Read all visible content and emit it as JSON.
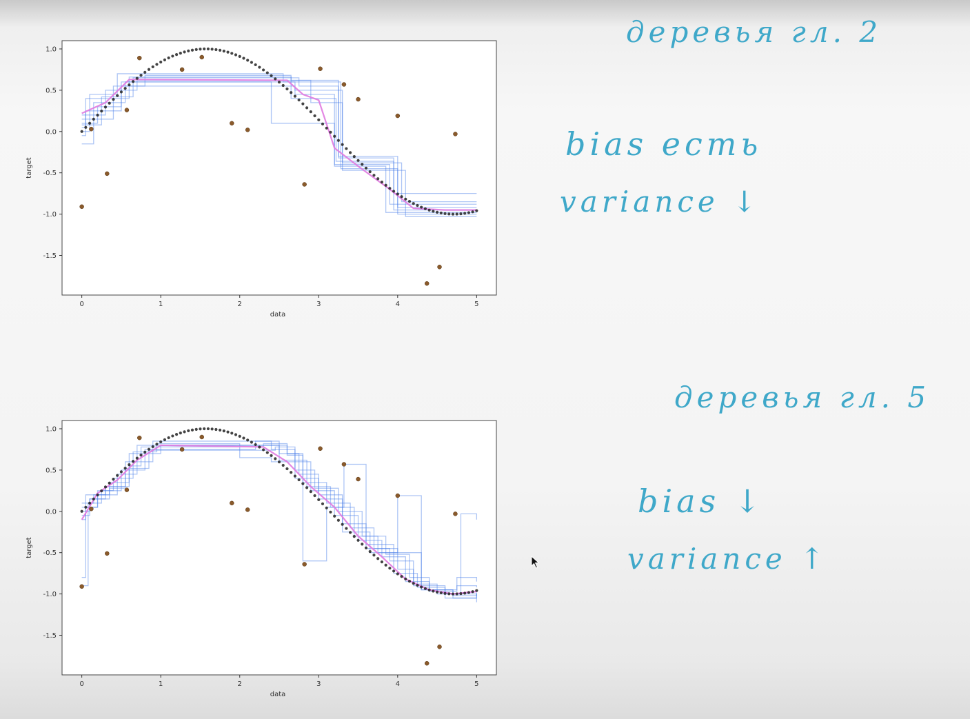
{
  "notes": {
    "plot1_heading": "деревья гл. 2",
    "plot1_bias": "bias есть",
    "plot1_variance": "variance ↓",
    "plot2_heading": "деревья гл. 5",
    "plot2_bias": "bias ↓",
    "plot2_variance": "variance ↑"
  },
  "colors": {
    "true_curve": "#222222",
    "train_points": "#8a5a2b",
    "tree_predictions": "#4a7ee8",
    "mean_prediction": "#e07ae0",
    "notes": "#3fa8c9"
  },
  "chart_data": [
    {
      "type": "line",
      "title": "",
      "xlabel": "data",
      "ylabel": "target",
      "xlim": [
        -0.25,
        5.25
      ],
      "ylim": [
        -1.98,
        1.1
      ],
      "xticks": [
        0,
        1,
        2,
        3,
        4,
        5
      ],
      "yticks": [
        1.0,
        0.5,
        0.0,
        -0.5,
        -1.0,
        -1.5
      ],
      "xtick_labels": [
        "0",
        "1",
        "2",
        "3",
        "4",
        "5"
      ],
      "ytick_labels": [
        "1.0",
        "0.5",
        "0.0",
        "-0.5",
        "-1.0",
        "-1.5"
      ],
      "true_function": "sin",
      "noisy_points": {
        "x": [
          0.0,
          0.12,
          0.32,
          0.57,
          0.73,
          1.27,
          1.52,
          1.9,
          2.1,
          2.82,
          3.02,
          3.32,
          3.5,
          4.0,
          4.37,
          4.53,
          4.73
        ],
        "y": [
          -0.91,
          0.03,
          -0.51,
          0.26,
          0.89,
          0.75,
          0.9,
          0.1,
          0.02,
          -0.64,
          0.76,
          0.57,
          0.39,
          0.19,
          -1.84,
          -1.64,
          -0.03
        ]
      },
      "tree_depth": 2,
      "tree_predictions": [
        {
          "x": [
            0,
            0.05,
            0.6,
            2.65,
            3.25,
            3.95,
            5
          ],
          "y": [
            0.05,
            0.4,
            0.66,
            0.62,
            -0.32,
            -0.95,
            -0.95
          ]
        },
        {
          "x": [
            0,
            0.2,
            0.5,
            2.7,
            3.2,
            3.9,
            5
          ],
          "y": [
            0.1,
            0.3,
            0.6,
            0.45,
            -0.4,
            -0.88,
            -0.88
          ]
        },
        {
          "x": [
            0,
            0.1,
            0.45,
            2.55,
            3.28,
            4.0,
            5
          ],
          "y": [
            0.0,
            0.45,
            0.7,
            0.6,
            -0.45,
            -1.0,
            -1.0
          ]
        },
        {
          "x": [
            0,
            0.3,
            0.7,
            2.9,
            3.3,
            4.05,
            5
          ],
          "y": [
            0.2,
            0.5,
            0.62,
            0.35,
            -0.38,
            -0.85,
            -0.85
          ]
        },
        {
          "x": [
            0,
            0.15,
            0.55,
            2.4,
            3.2,
            3.85,
            5
          ],
          "y": [
            -0.15,
            0.35,
            0.6,
            0.1,
            -0.42,
            -0.98,
            -0.98
          ]
        },
        {
          "x": [
            0,
            0.25,
            0.65,
            2.75,
            3.25,
            4.0,
            5
          ],
          "y": [
            0.08,
            0.42,
            0.65,
            0.55,
            -0.3,
            -0.92,
            -0.92
          ]
        },
        {
          "x": [
            0,
            0.4,
            0.8,
            2.65,
            3.22,
            3.95,
            5
          ],
          "y": [
            0.15,
            0.55,
            0.68,
            0.4,
            -0.36,
            -0.75,
            -0.75
          ]
        },
        {
          "x": [
            0,
            0.05,
            0.5,
            2.7,
            3.3,
            4.1,
            5
          ],
          "y": [
            -0.05,
            0.25,
            0.55,
            0.5,
            -0.47,
            -1.03,
            -1.03
          ]
        }
      ],
      "mean_prediction": {
        "x": [
          0,
          0.3,
          0.6,
          2.6,
          2.8,
          3.0,
          3.2,
          3.5,
          3.9,
          4.2,
          4.6,
          5
        ],
        "y": [
          0.22,
          0.35,
          0.63,
          0.62,
          0.45,
          0.38,
          -0.2,
          -0.42,
          -0.7,
          -0.93,
          -0.95,
          -0.95
        ]
      }
    },
    {
      "type": "line",
      "title": "",
      "xlabel": "data",
      "ylabel": "target",
      "xlim": [
        -0.25,
        5.25
      ],
      "ylim": [
        -1.98,
        1.1
      ],
      "xticks": [
        0,
        1,
        2,
        3,
        4,
        5
      ],
      "yticks": [
        1.0,
        0.5,
        0.0,
        -0.5,
        -1.0,
        -1.5
      ],
      "xtick_labels": [
        "0",
        "1",
        "2",
        "3",
        "4",
        "5"
      ],
      "ytick_labels": [
        "1.0",
        "0.5",
        "0.0",
        "-0.5",
        "-1.0",
        "-1.5"
      ],
      "true_function": "sin",
      "noisy_points": {
        "x": [
          0.0,
          0.12,
          0.32,
          0.57,
          0.73,
          1.27,
          1.52,
          1.9,
          2.1,
          2.82,
          3.02,
          3.32,
          3.5,
          4.0,
          4.37,
          4.53,
          4.73
        ],
        "y": [
          -0.91,
          0.03,
          -0.51,
          0.26,
          0.89,
          0.75,
          0.9,
          0.1,
          0.02,
          -0.64,
          0.76,
          0.57,
          0.39,
          0.19,
          -1.84,
          -1.64,
          -0.03
        ]
      },
      "tree_depth": 5,
      "tree_predictions": [
        {
          "x": [
            0,
            0.05,
            0.2,
            0.45,
            0.7,
            2.3,
            2.6,
            2.8,
            3.1,
            3.4,
            3.7,
            4.0,
            4.2,
            4.6,
            4.8,
            5
          ],
          "y": [
            -0.8,
            0.05,
            0.2,
            0.45,
            0.8,
            0.82,
            0.7,
            0.35,
            0.1,
            -0.2,
            -0.45,
            -0.7,
            -0.9,
            -1.0,
            -0.03,
            -0.1
          ]
        },
        {
          "x": [
            0,
            0.1,
            0.3,
            0.55,
            0.9,
            2.4,
            2.7,
            2.9,
            3.2,
            3.5,
            3.8,
            4.1,
            4.4,
            4.7,
            5
          ],
          "y": [
            0.0,
            0.15,
            0.3,
            0.6,
            0.85,
            0.75,
            0.6,
            0.25,
            -0.05,
            -0.35,
            -0.55,
            -0.85,
            -0.95,
            -1.05,
            -1.05
          ]
        },
        {
          "x": [
            0,
            0.08,
            0.25,
            0.5,
            0.8,
            2.2,
            2.5,
            2.85,
            3.15,
            3.45,
            3.75,
            4.0,
            4.3,
            4.75,
            5
          ],
          "y": [
            -0.9,
            0.1,
            0.25,
            0.5,
            0.75,
            0.85,
            0.62,
            0.3,
            0.05,
            -0.3,
            -0.5,
            0.19,
            -0.95,
            -0.9,
            -0.92
          ]
        },
        {
          "x": [
            0,
            0.15,
            0.35,
            0.6,
            1.0,
            2.5,
            2.75,
            3.0,
            3.3,
            3.6,
            3.9,
            4.2,
            4.5,
            5
          ],
          "y": [
            0.1,
            0.2,
            0.35,
            0.7,
            0.8,
            0.7,
            0.45,
            0.2,
            -0.15,
            -0.45,
            -0.6,
            -0.88,
            -1.0,
            -1.1
          ]
        },
        {
          "x": [
            0,
            0.05,
            0.3,
            0.6,
            0.75,
            2.3,
            2.6,
            2.8,
            3.1,
            3.32,
            3.6,
            3.95,
            4.3,
            4.7,
            5
          ],
          "y": [
            -0.1,
            0.2,
            0.3,
            0.55,
            0.78,
            0.8,
            0.68,
            -0.6,
            0.05,
            0.57,
            -0.4,
            -0.5,
            -0.95,
            -1.02,
            -0.98
          ]
        },
        {
          "x": [
            0,
            0.2,
            0.4,
            0.65,
            0.95,
            2.0,
            2.4,
            2.7,
            3.0,
            3.3,
            3.65,
            3.95,
            4.25,
            4.6,
            5
          ],
          "y": [
            0.05,
            0.25,
            0.4,
            0.72,
            0.82,
            0.65,
            0.6,
            0.4,
            0.15,
            -0.25,
            -0.5,
            -0.75,
            -0.92,
            -1.05,
            -1.0
          ]
        },
        {
          "x": [
            0,
            0.1,
            0.35,
            0.55,
            0.85,
            2.45,
            2.7,
            2.95,
            3.25,
            3.55,
            3.85,
            4.15,
            4.4,
            4.75,
            5
          ],
          "y": [
            -0.05,
            0.15,
            0.28,
            0.52,
            0.74,
            0.78,
            0.5,
            0.28,
            0.0,
            -0.3,
            -0.52,
            -0.8,
            -0.97,
            -0.8,
            -0.85
          ]
        }
      ],
      "mean_prediction": {
        "x": [
          0,
          0.2,
          0.45,
          0.7,
          1.0,
          2.3,
          2.6,
          2.9,
          3.2,
          3.5,
          3.8,
          4.1,
          4.4,
          4.7,
          5
        ],
        "y": [
          -0.1,
          0.22,
          0.38,
          0.62,
          0.8,
          0.78,
          0.6,
          0.3,
          0.05,
          -0.3,
          -0.55,
          -0.82,
          -0.95,
          -1.0,
          -0.97
        ]
      }
    }
  ]
}
